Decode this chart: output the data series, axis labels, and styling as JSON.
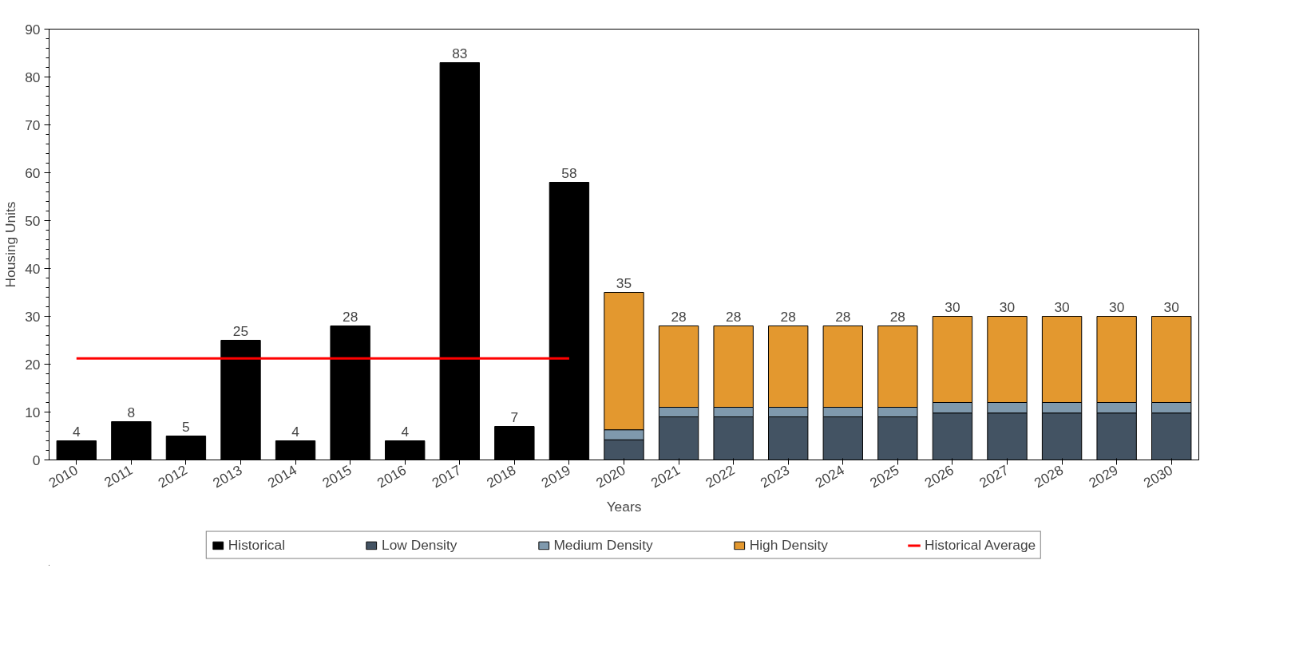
{
  "chart_data": {
    "type": "bar",
    "xlabel": "Years",
    "ylabel": "Housing Units",
    "categories": [
      "2010",
      "2011",
      "2012",
      "2013",
      "2014",
      "2015",
      "2016",
      "2017",
      "2018",
      "2019",
      "2020",
      "2021",
      "2022",
      "2023",
      "2024",
      "2025",
      "2026",
      "2027",
      "2028",
      "2029",
      "2030"
    ],
    "stacked": true,
    "series": [
      {
        "name": "Historical",
        "color": "#000000",
        "values": [
          4,
          8,
          5,
          25,
          4,
          28,
          4,
          83,
          7,
          58,
          null,
          null,
          null,
          null,
          null,
          null,
          null,
          null,
          null,
          null,
          null
        ],
        "value_labels": [
          "4",
          "8",
          "5",
          "25",
          "4",
          "28",
          "4",
          "83",
          "7",
          "58",
          null,
          null,
          null,
          null,
          null,
          null,
          null,
          null,
          null,
          null,
          null
        ]
      },
      {
        "name": "Low Density",
        "color": "#435363",
        "values": [
          null,
          null,
          null,
          null,
          null,
          null,
          null,
          null,
          null,
          null,
          4.2,
          9,
          9,
          9,
          9,
          9,
          9.8,
          9.8,
          9.8,
          9.8,
          9.8
        ]
      },
      {
        "name": "Medium Density",
        "color": "#7f99ad",
        "values": [
          null,
          null,
          null,
          null,
          null,
          null,
          null,
          null,
          null,
          null,
          2.1,
          2,
          2,
          2,
          2,
          2,
          2.2,
          2.2,
          2.2,
          2.2,
          2.2
        ]
      },
      {
        "name": "High Density",
        "color": "#e3982f",
        "values": [
          null,
          null,
          null,
          null,
          null,
          null,
          null,
          null,
          null,
          null,
          28.7,
          17,
          17,
          17,
          17,
          17,
          18,
          18,
          18,
          18,
          18
        ]
      },
      {
        "name": "Historical Average",
        "type": "line",
        "color": "#ff0000",
        "values": [
          21.2,
          21.2,
          21.2,
          21.2,
          21.2,
          21.2,
          21.2,
          21.2,
          21.2,
          21.2,
          null,
          null,
          null,
          null,
          null,
          null,
          null,
          null,
          null,
          null,
          null
        ]
      }
    ],
    "totals": [
      null,
      null,
      null,
      null,
      null,
      null,
      null,
      null,
      null,
      null,
      "35",
      "28",
      "28",
      "28",
      "28",
      "28",
      "30",
      "30",
      "30",
      "30",
      "30"
    ],
    "ylim": [
      0,
      90
    ],
    "yticks": [
      0,
      10,
      20,
      30,
      40,
      50,
      60,
      70,
      80,
      90
    ],
    "grid": false,
    "legend": "bottom"
  }
}
